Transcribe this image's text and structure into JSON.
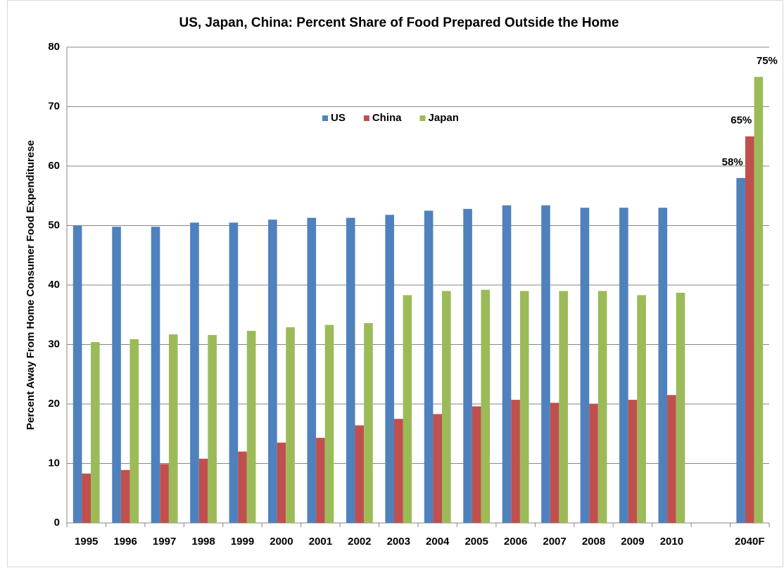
{
  "chart_data": {
    "type": "bar",
    "title": "US, Japan, China: Percent Share of Food Prepared Outside the Home",
    "y_label": "Percent Away From Home Consumer Food Expenditurese",
    "categories": [
      "1995",
      "1996",
      "1997",
      "1998",
      "1999",
      "2000",
      "2001",
      "2002",
      "2003",
      "2004",
      "2005",
      "2006",
      "2007",
      "2008",
      "2009",
      "2010",
      null,
      "2040F"
    ],
    "series": [
      {
        "name": "US",
        "color": "#4f81bd",
        "values": [
          50,
          49.8,
          49.8,
          50.5,
          50.5,
          51,
          51.3,
          51.3,
          51.8,
          52.5,
          52.8,
          53.4,
          53.4,
          53,
          53,
          53,
          null,
          58
        ],
        "value_labels": [
          null,
          null,
          null,
          null,
          null,
          null,
          null,
          null,
          null,
          null,
          null,
          null,
          null,
          null,
          null,
          null,
          null,
          "58%"
        ]
      },
      {
        "name": "China",
        "color": "#c0504d",
        "values": [
          8.3,
          8.9,
          9.9,
          10.8,
          12,
          13.5,
          14.3,
          16.4,
          17.5,
          18.3,
          19.6,
          20.7,
          20.2,
          20,
          20.7,
          21.5,
          null,
          65
        ],
        "value_labels": [
          null,
          null,
          null,
          null,
          null,
          null,
          null,
          null,
          null,
          null,
          null,
          null,
          null,
          null,
          null,
          null,
          null,
          "65%"
        ]
      },
      {
        "name": "Japan",
        "color": "#9bbb59",
        "values": [
          30.4,
          30.9,
          31.7,
          31.6,
          32.3,
          32.9,
          33.3,
          33.6,
          38.3,
          39,
          39.2,
          39,
          39,
          39,
          38.3,
          38.7,
          null,
          75
        ],
        "value_labels": [
          null,
          null,
          null,
          null,
          null,
          null,
          null,
          null,
          null,
          null,
          null,
          null,
          null,
          null,
          null,
          null,
          null,
          "75%"
        ]
      }
    ],
    "ylim": [
      0,
      80
    ],
    "yticks": [
      0,
      10,
      20,
      30,
      40,
      50,
      60,
      70,
      80
    ],
    "grid": true,
    "legend": "top"
  }
}
